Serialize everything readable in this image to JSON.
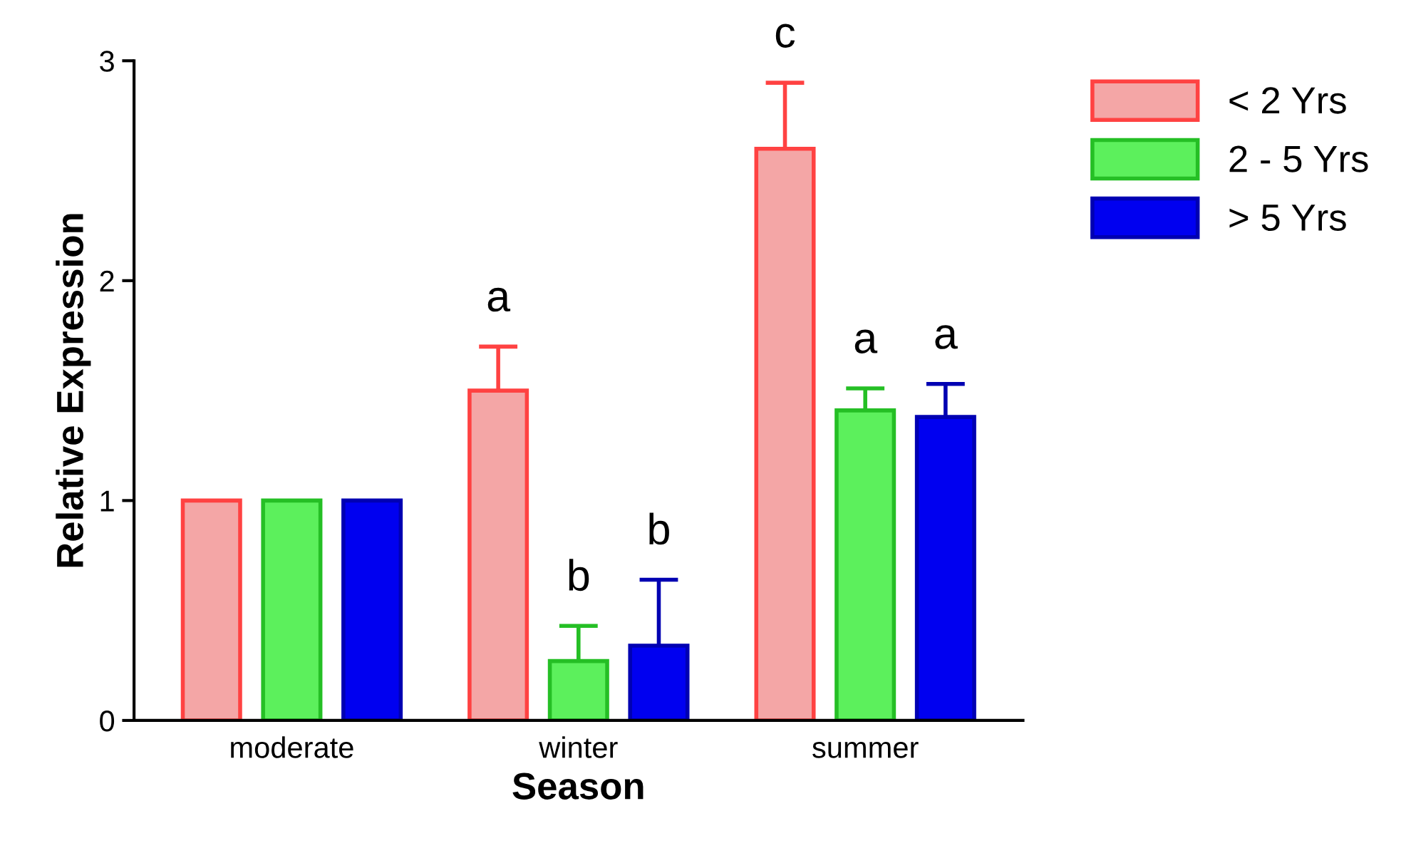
{
  "chart_data": {
    "type": "bar",
    "xlabel": "Season",
    "ylabel": "Relative Expression",
    "categories": [
      "moderate",
      "winter",
      "summer"
    ],
    "series": [
      {
        "name": "< 2 Yrs",
        "color": "#f4a6a6",
        "values": [
          1.0,
          1.5,
          2.6
        ],
        "errors": [
          null,
          [
            1.5,
            1.7
          ],
          [
            2.6,
            2.9
          ]
        ],
        "value_labels": [
          null,
          "a",
          "c"
        ]
      },
      {
        "name": "2 - 5 Yrs",
        "color": "#5cf05c",
        "values": [
          1.0,
          0.27,
          1.41
        ],
        "errors": [
          null,
          [
            0.27,
            0.43
          ],
          [
            1.41,
            1.51
          ]
        ],
        "value_labels": [
          null,
          "b",
          "a"
        ]
      },
      {
        "name": "> 5 Yrs",
        "color": "#0000f0",
        "values": [
          1.0,
          0.34,
          1.38
        ],
        "errors": [
          null,
          [
            0.34,
            0.64
          ],
          [
            1.38,
            1.53
          ]
        ],
        "value_labels": [
          null,
          "b",
          "a"
        ]
      }
    ],
    "ylim": [
      0,
      3
    ],
    "yticks": [
      0,
      1,
      2,
      3
    ],
    "grid": false,
    "legend": "top right"
  }
}
